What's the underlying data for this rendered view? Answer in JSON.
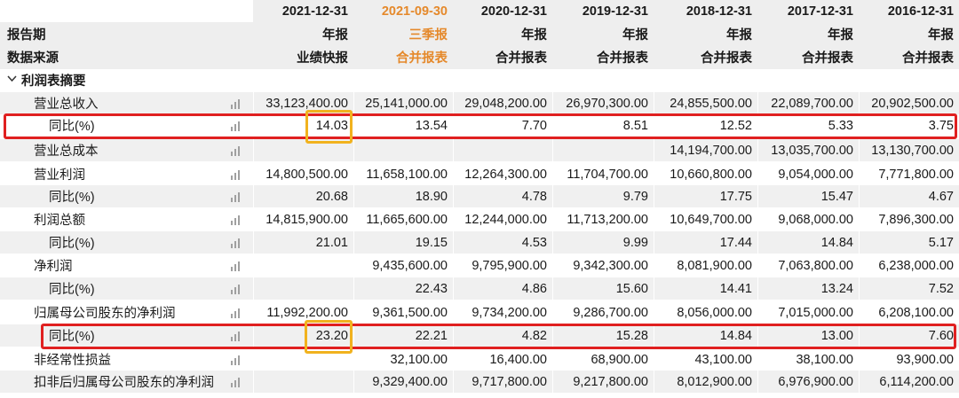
{
  "header": {
    "dates": [
      "2021-12-31",
      "2021-09-30",
      "2020-12-31",
      "2019-12-31",
      "2018-12-31",
      "2017-12-31",
      "2016-12-31"
    ],
    "period_label": "报告期",
    "types": [
      "年报",
      "三季报",
      "年报",
      "年报",
      "年报",
      "年报",
      "年报"
    ],
    "source_label": "数据来源",
    "sources": [
      "业绩快报",
      "合并报表",
      "合并报表",
      "合并报表",
      "合并报表",
      "合并报表",
      "合并报表"
    ],
    "highlight_color": "#e5892b"
  },
  "section": {
    "title": "利润表摘要",
    "chevron_icon": "chevron-down-icon"
  },
  "rows": [
    {
      "label": "营业总收入",
      "values": [
        "33,123,400.00",
        "25,141,000.00",
        "29,048,200.00",
        "26,970,300.00",
        "24,855,500.00",
        "22,089,700.00",
        "20,902,500.00"
      ]
    },
    {
      "label": "同比(%)",
      "values": [
        "14.03",
        "13.54",
        "7.70",
        "8.51",
        "12.52",
        "5.33",
        "3.75"
      ]
    },
    {
      "label": "营业总成本",
      "values": [
        "",
        "",
        "",
        "",
        "14,194,700.00",
        "13,035,700.00",
        "13,130,700.00"
      ]
    },
    {
      "label": "营业利润",
      "values": [
        "14,800,500.00",
        "11,658,100.00",
        "12,264,300.00",
        "11,704,700.00",
        "10,660,800.00",
        "9,054,000.00",
        "7,771,800.00"
      ]
    },
    {
      "label": "同比(%)",
      "values": [
        "20.68",
        "18.90",
        "4.78",
        "9.79",
        "17.75",
        "15.47",
        "4.67"
      ]
    },
    {
      "label": "利润总额",
      "values": [
        "14,815,900.00",
        "11,665,600.00",
        "12,244,000.00",
        "11,713,200.00",
        "10,649,700.00",
        "9,068,000.00",
        "7,896,300.00"
      ]
    },
    {
      "label": "同比(%)",
      "values": [
        "21.01",
        "19.15",
        "4.53",
        "9.99",
        "17.44",
        "14.84",
        "5.17"
      ]
    },
    {
      "label": "净利润",
      "values": [
        "",
        "9,435,600.00",
        "9,795,900.00",
        "9,342,300.00",
        "8,081,900.00",
        "7,063,800.00",
        "6,238,000.00"
      ]
    },
    {
      "label": "同比(%)",
      "values": [
        "",
        "22.43",
        "4.86",
        "15.60",
        "14.41",
        "13.24",
        "7.52"
      ]
    },
    {
      "label": "归属母公司股东的净利润",
      "values": [
        "11,992,200.00",
        "9,361,500.00",
        "9,734,200.00",
        "9,286,700.00",
        "8,056,000.00",
        "7,015,000.00",
        "6,208,100.00"
      ]
    },
    {
      "label": "同比(%)",
      "values": [
        "23.20",
        "22.21",
        "4.82",
        "15.28",
        "14.84",
        "13.00",
        "7.60"
      ]
    },
    {
      "label": "非经常性损益",
      "values": [
        "",
        "32,100.00",
        "16,400.00",
        "68,900.00",
        "43,100.00",
        "38,100.00",
        "93,900.00"
      ]
    },
    {
      "label": "扣非后归属母公司股东的净利润",
      "values": [
        "",
        "9,329,400.00",
        "9,717,800.00",
        "9,217,800.00",
        "8,012,900.00",
        "6,976,900.00",
        "6,114,200.00"
      ]
    }
  ],
  "annotations": {
    "red_box_color": "#e02020",
    "yellow_box_color": "#f1b21e"
  }
}
